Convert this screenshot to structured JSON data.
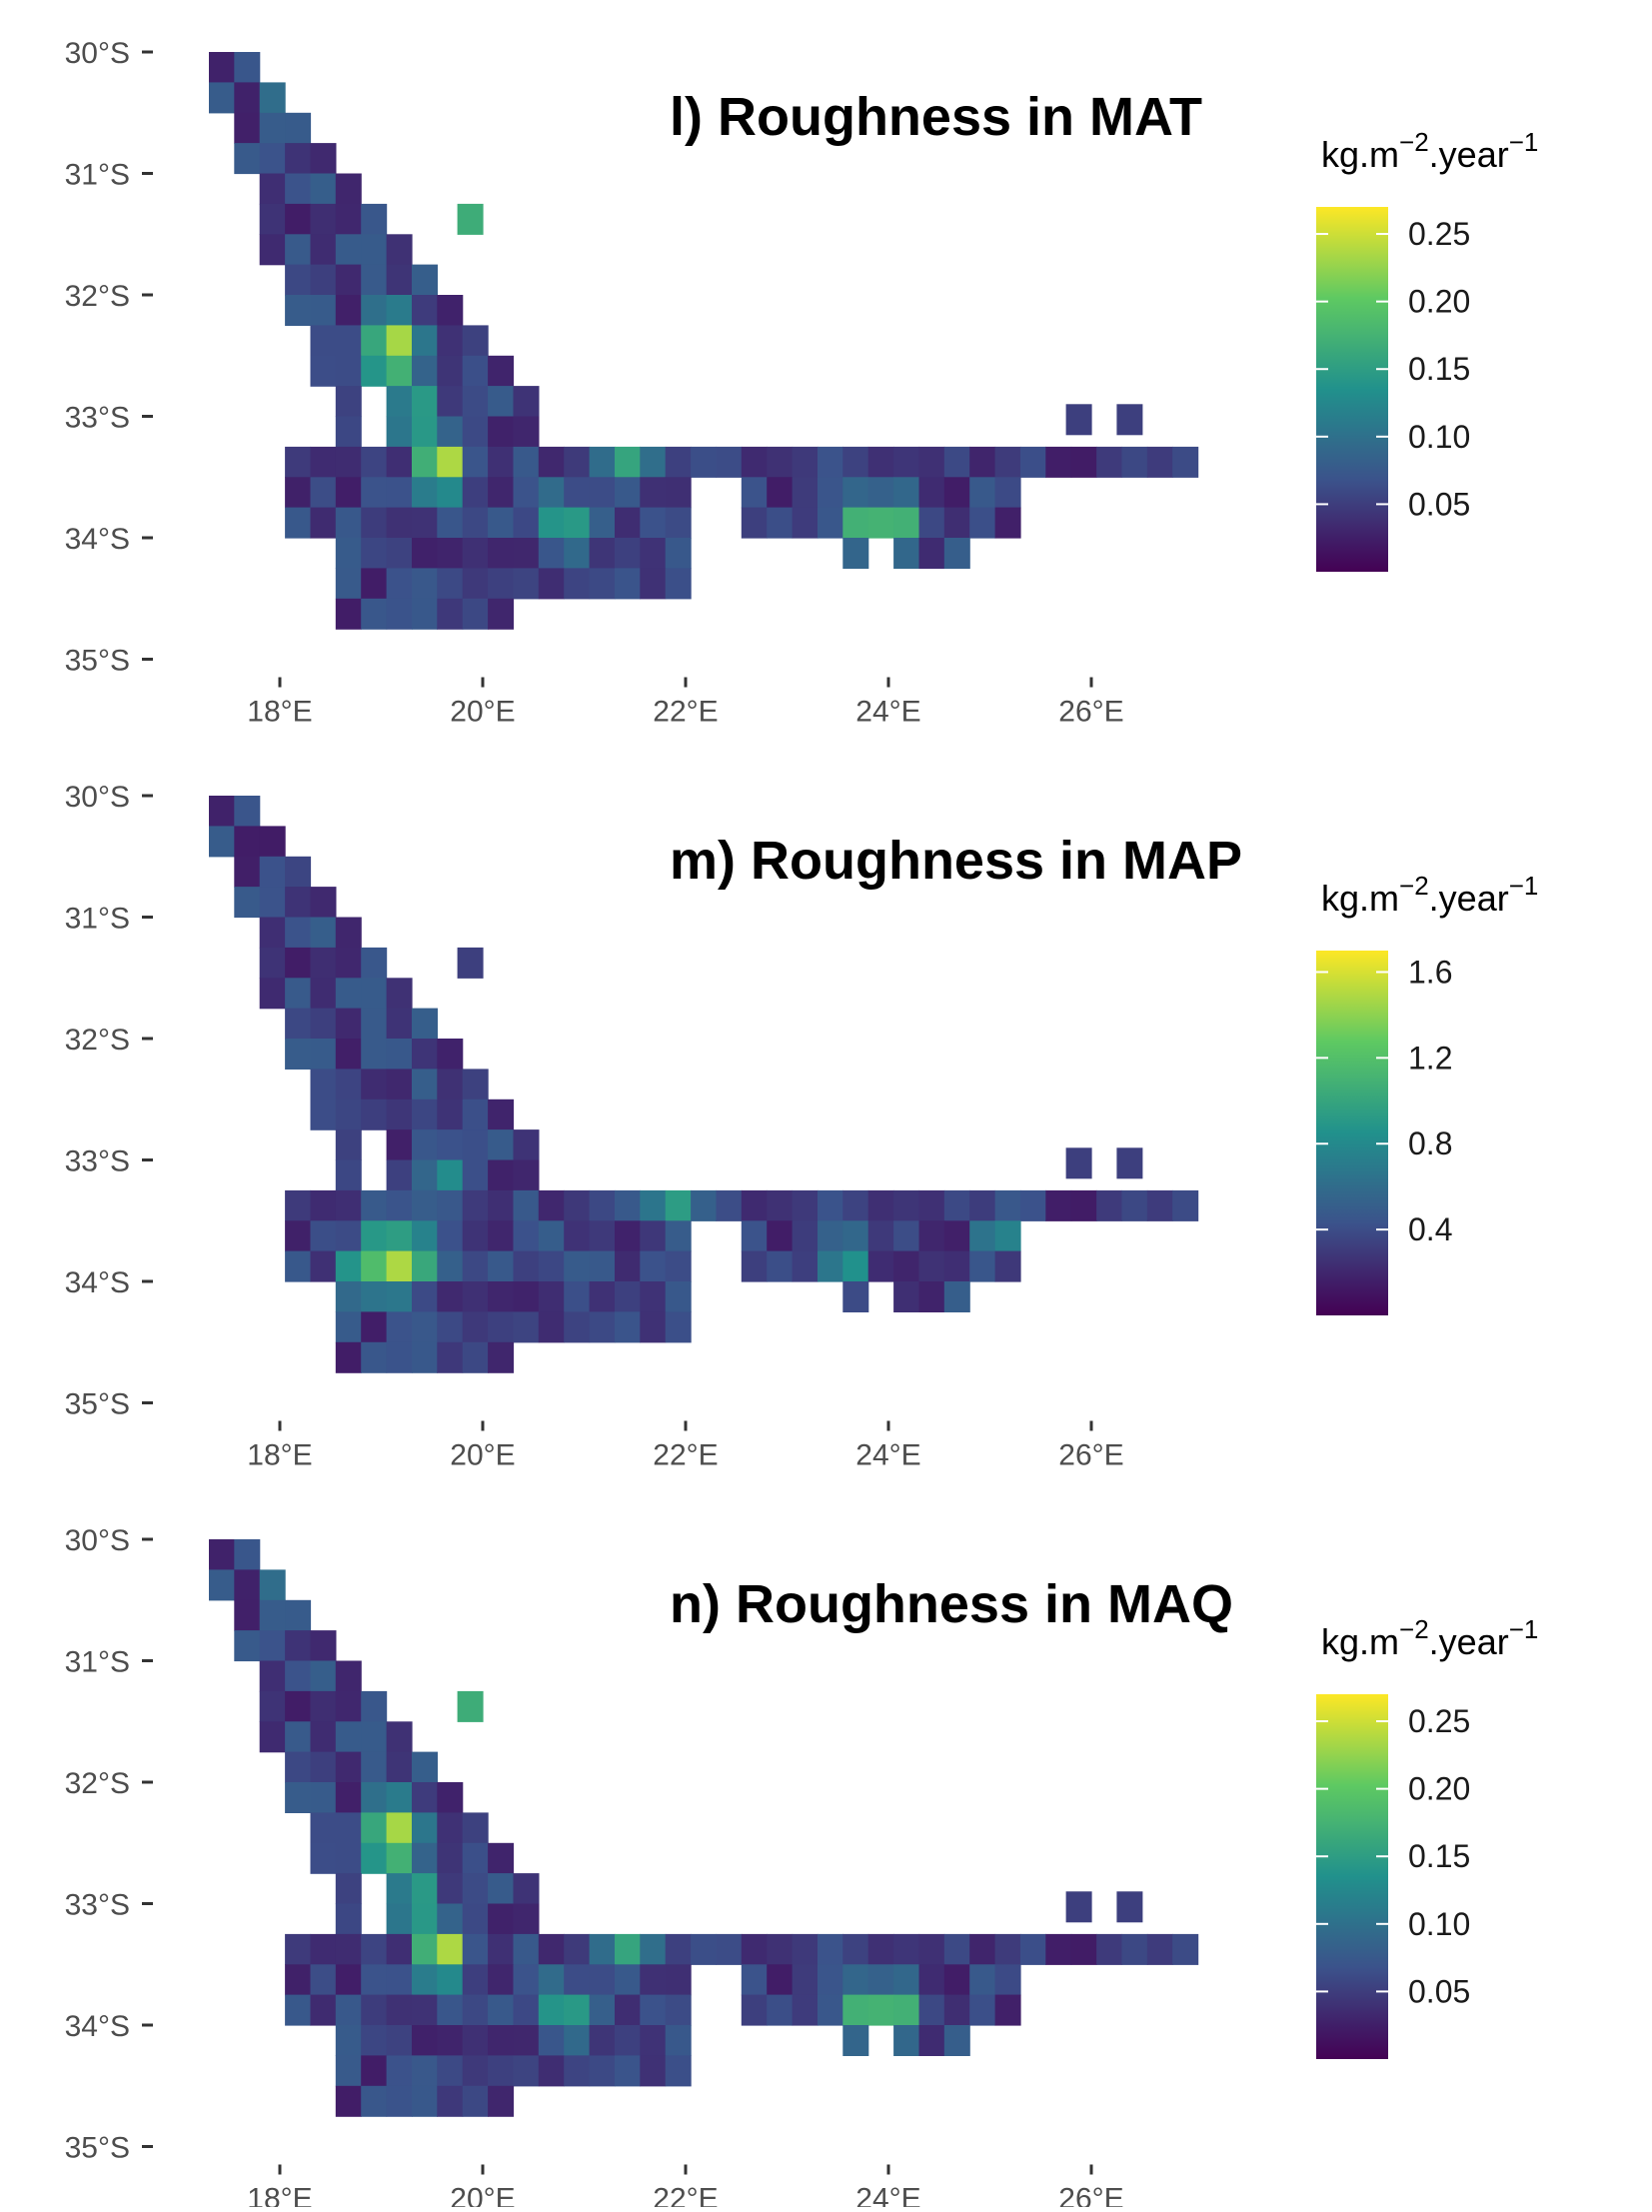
{
  "figure": {
    "panels": [
      {
        "id": "MAT",
        "title": "l) Roughness in MAT",
        "legend": {
          "title_main": "kg.m",
          "title_sup1": "−2",
          "title_mid": ".year",
          "title_sup2": "−1",
          "range": [
            0.0,
            0.27
          ],
          "ticks": [
            0.05,
            0.1,
            0.15,
            0.2,
            0.25
          ],
          "tick_labels": [
            "0.05",
            "0.10",
            "0.15",
            "0.20",
            "0.25"
          ]
        },
        "hotspots": [
          {
            "lon": 19.1,
            "lat": -32.4,
            "value": 0.26
          },
          {
            "lon": 19.6,
            "lat": -33.4,
            "value": 0.26
          },
          {
            "lon": 19.1,
            "lat": -32.6,
            "value": 0.18
          },
          {
            "lon": 19.35,
            "lat": -33.0,
            "value": 0.19
          },
          {
            "lon": 23.8,
            "lat": -33.9,
            "value": 0.21
          },
          {
            "lon": 24.1,
            "lat": -33.9,
            "value": 0.19
          },
          {
            "lon": 19.85,
            "lat": -31.4,
            "value": 0.17
          },
          {
            "lon": 18.1,
            "lat": -30.35,
            "value": 0.16
          },
          {
            "lon": 21.4,
            "lat": -33.4,
            "value": 0.16
          },
          {
            "lon": 20.8,
            "lat": -33.9,
            "value": 0.17
          }
        ]
      },
      {
        "id": "MAP",
        "title": "m) Roughness in MAP",
        "legend": {
          "title_main": "kg.m",
          "title_sup1": "−2",
          "title_mid": ".year",
          "title_sup2": "−1",
          "range": [
            0.0,
            1.7
          ],
          "ticks": [
            0.4,
            0.8,
            1.2,
            1.6
          ],
          "tick_labels": [
            "0.4",
            "0.8",
            "1.2",
            "1.6"
          ]
        },
        "hotspots": [
          {
            "lon": 19.1,
            "lat": -33.85,
            "value": 1.65
          },
          {
            "lon": 18.85,
            "lat": -33.85,
            "value": 1.2
          },
          {
            "lon": 19.35,
            "lat": -33.85,
            "value": 1.1
          },
          {
            "lon": 19.1,
            "lat": -33.6,
            "value": 0.95
          },
          {
            "lon": 21.9,
            "lat": -33.4,
            "value": 0.95
          },
          {
            "lon": 23.6,
            "lat": -33.85,
            "value": 0.9
          },
          {
            "lon": 19.6,
            "lat": -33.1,
            "value": 0.9
          },
          {
            "lon": 25.1,
            "lat": -33.6,
            "value": 0.8
          }
        ]
      },
      {
        "id": "MAQ",
        "title": "n) Roughness in MAQ",
        "legend": {
          "title_main": "kg.m",
          "title_sup1": "−2",
          "title_mid": ".year",
          "title_sup2": "−1",
          "range": [
            0.0,
            0.27
          ],
          "ticks": [
            0.05,
            0.1,
            0.15,
            0.2,
            0.25
          ],
          "tick_labels": [
            "0.05",
            "0.10",
            "0.15",
            "0.20",
            "0.25"
          ]
        },
        "hotspots": [
          {
            "lon": 19.1,
            "lat": -32.4,
            "value": 0.26
          },
          {
            "lon": 19.6,
            "lat": -33.4,
            "value": 0.26
          },
          {
            "lon": 19.1,
            "lat": -32.6,
            "value": 0.18
          },
          {
            "lon": 19.35,
            "lat": -33.0,
            "value": 0.19
          },
          {
            "lon": 23.8,
            "lat": -33.9,
            "value": 0.21
          },
          {
            "lon": 24.1,
            "lat": -33.9,
            "value": 0.19
          },
          {
            "lon": 19.85,
            "lat": -31.4,
            "value": 0.17
          },
          {
            "lon": 18.1,
            "lat": -30.35,
            "value": 0.16
          },
          {
            "lon": 21.4,
            "lat": -33.4,
            "value": 0.16
          },
          {
            "lon": 20.8,
            "lat": -33.9,
            "value": 0.17
          }
        ]
      }
    ],
    "lat_ticks": [
      -30,
      -31,
      -32,
      -33,
      -34,
      -35
    ],
    "lat_labels": [
      "30°S",
      "31°S",
      "32°S",
      "33°S",
      "34°S",
      "35°S"
    ],
    "lon_ticks": [
      18,
      20,
      22,
      24,
      26
    ],
    "lon_labels": [
      "18°E",
      "20°E",
      "22°E",
      "24°E",
      "26°E"
    ],
    "colormap": [
      "#440154",
      "#3b528b",
      "#21918c",
      "#5ec962",
      "#fde725"
    ]
  }
}
